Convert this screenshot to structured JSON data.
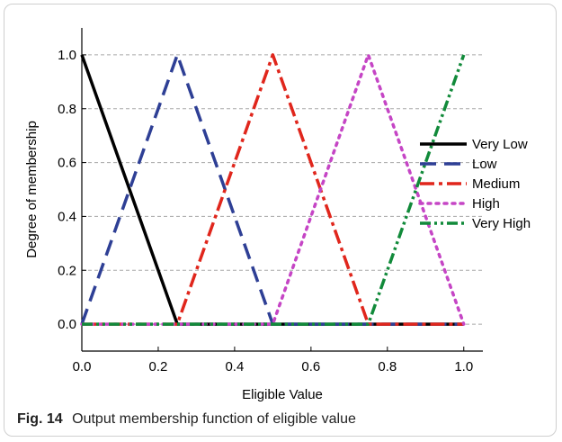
{
  "caption": {
    "label": "Fig. 14",
    "text": "Output membership function of eligible value"
  },
  "chart_data": {
    "type": "line",
    "title": "",
    "xlabel": "Eligible Value",
    "ylabel": "Degree of membership",
    "xlim": [
      0.0,
      1.05
    ],
    "ylim": [
      -0.1,
      1.1
    ],
    "xticks": [
      "0.0",
      "0.2",
      "0.4",
      "0.6",
      "0.8",
      "1.0"
    ],
    "yticks": [
      "0.0",
      "0.2",
      "0.4",
      "0.6",
      "0.8",
      "1.0"
    ],
    "grid": "horizontal dashed",
    "legend_position": "right",
    "series": [
      {
        "name": "Very Low",
        "color": "#000000",
        "style": "solid",
        "x": [
          0.0,
          0.25,
          1.0
        ],
        "y": [
          1.0,
          0.0,
          0.0
        ]
      },
      {
        "name": "Low",
        "color": "#2e3f95",
        "style": "dash",
        "x": [
          0.0,
          0.25,
          0.5,
          1.0
        ],
        "y": [
          0.0,
          1.0,
          0.0,
          0.0
        ]
      },
      {
        "name": "Medium",
        "color": "#e0261c",
        "style": "dashdot",
        "x": [
          0.0,
          0.25,
          0.5,
          0.75,
          1.0
        ],
        "y": [
          0.0,
          0.0,
          1.0,
          0.0,
          0.0
        ]
      },
      {
        "name": "High",
        "color": "#c545c5",
        "style": "dot",
        "x": [
          0.0,
          0.5,
          0.75,
          1.0
        ],
        "y": [
          0.0,
          0.0,
          1.0,
          0.0
        ]
      },
      {
        "name": "Very High",
        "color": "#118a3a",
        "style": "dashdotdot",
        "x": [
          0.0,
          0.75,
          1.0
        ],
        "y": [
          0.0,
          0.0,
          1.0
        ]
      }
    ]
  }
}
